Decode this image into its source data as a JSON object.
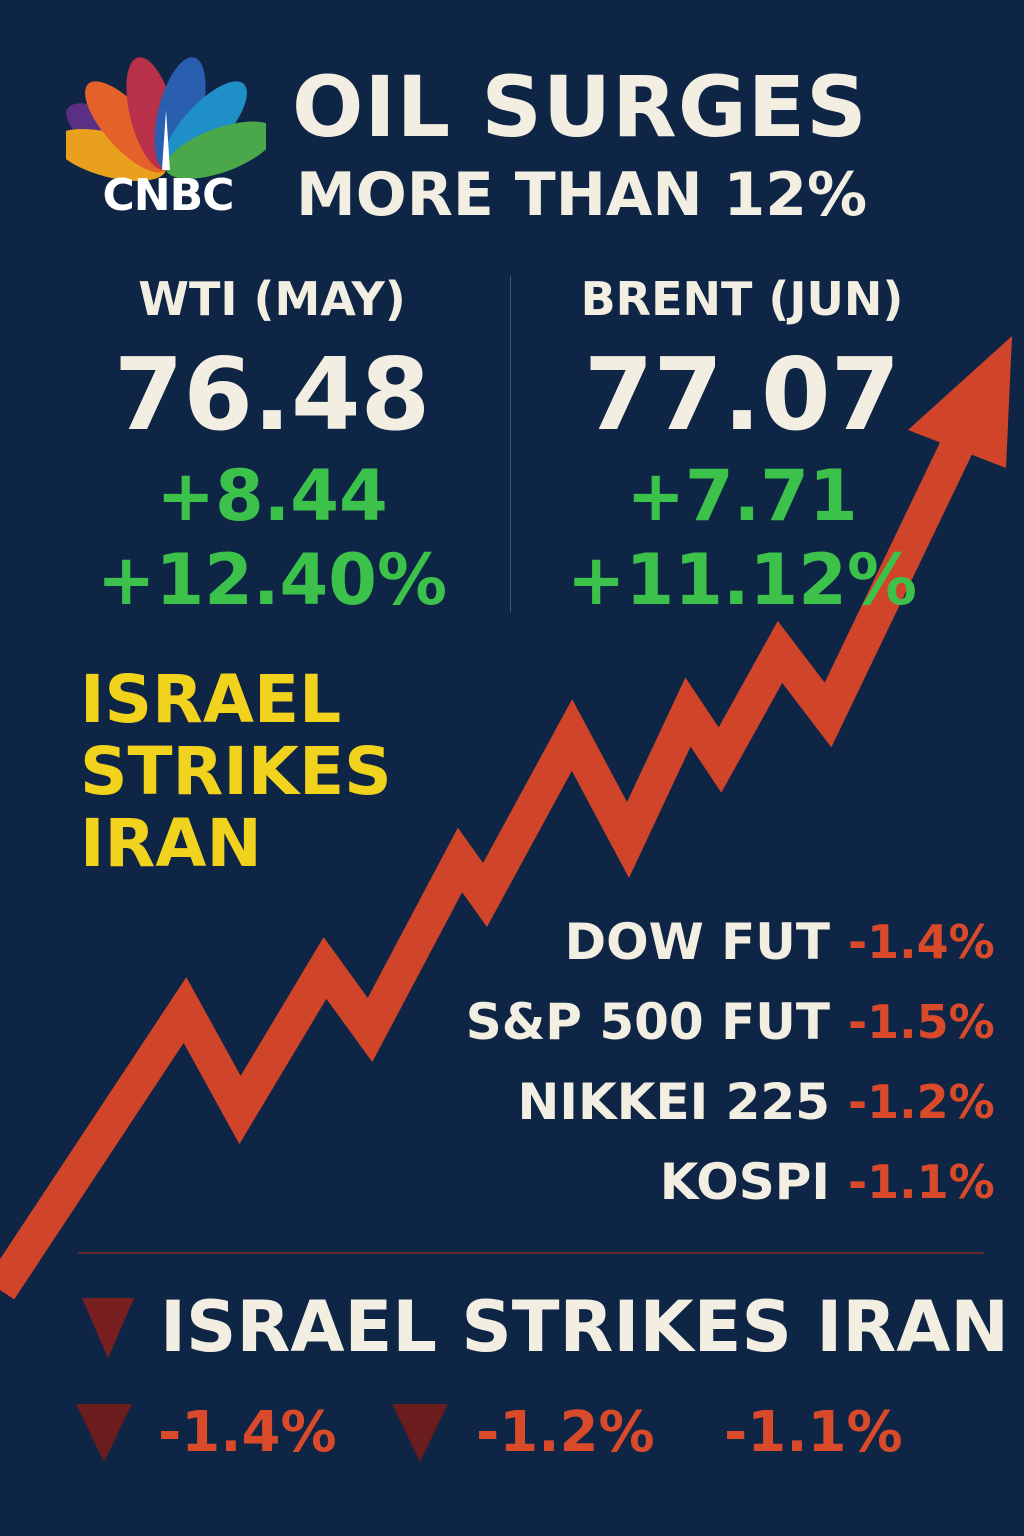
{
  "brand": {
    "logo_text": "CNBC",
    "logo_icon": "peacock-icon"
  },
  "header": {
    "title_line1": "OIL SURGES",
    "title_line2": "MORE THAN 12%"
  },
  "quotes": [
    {
      "name": "WTI (MAY)",
      "price": "76.48",
      "change": "+8.44",
      "change_pct": "+12.40%"
    },
    {
      "name": "BRENT (JUN)",
      "price": "77.07",
      "change": "+7.71",
      "change_pct": "+11.12%"
    }
  ],
  "headline": {
    "line1": "ISRAEL",
    "line2": "STRIKES",
    "line3": "IRAN"
  },
  "indices": [
    {
      "name": "DOW FUT",
      "value": "-1.4%"
    },
    {
      "name": "S&P 500 FUT",
      "value": "-1.5%"
    },
    {
      "name": "NIKKEI 225",
      "value": "-1.2%"
    },
    {
      "name": "KOSPI",
      "value": "-1.1%"
    }
  ],
  "ticker": {
    "title": "ISRAEL STRIKES IRAN",
    "values": [
      "-1.4%",
      "-1.2%",
      "-1.1%"
    ]
  },
  "colors": {
    "background": "#0f2545",
    "text": "#f3eee2",
    "positive": "#3cc24a",
    "negative": "#d94a2a",
    "headline": "#f1d21c",
    "arrow": "#d0452a"
  }
}
